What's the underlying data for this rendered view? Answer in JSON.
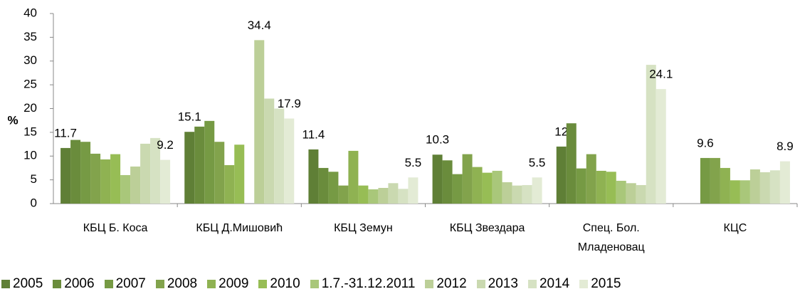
{
  "chart_data": {
    "type": "bar",
    "y_label": "%",
    "categories": [
      "КБЦ Б. Коса",
      "КБЦ Д.Мишовић",
      "КБЦ Земун",
      "КБЦ Звездара",
      "Спец. Бол. Младеновац",
      "КЦС"
    ],
    "ylim": [
      0,
      40
    ],
    "yticks": [
      0,
      5,
      10,
      15,
      20,
      25,
      30,
      35,
      40
    ],
    "grid": false,
    "series": [
      {
        "name": "2005",
        "color": "#5f7f36",
        "values": [
          11.7,
          15.1,
          11.4,
          10.3,
          12,
          null
        ],
        "show_value": [
          true,
          true,
          true,
          true,
          true,
          false
        ]
      },
      {
        "name": "2006",
        "color": "#6a8c3c",
        "values": [
          13.4,
          16.2,
          7.5,
          9.1,
          16.9,
          null
        ],
        "show_value": [
          false,
          false,
          false,
          false,
          false,
          false
        ]
      },
      {
        "name": "2007",
        "color": "#769a44",
        "values": [
          13,
          17.4,
          6.7,
          6.2,
          7.4,
          9.6
        ],
        "show_value": [
          false,
          false,
          false,
          false,
          false,
          true
        ]
      },
      {
        "name": "2008",
        "color": "#82a34c",
        "values": [
          10.5,
          13,
          3.8,
          10.4,
          10.4,
          9.6
        ],
        "show_value": [
          false,
          false,
          false,
          false,
          false,
          false
        ]
      },
      {
        "name": "2009",
        "color": "#8fb252",
        "values": [
          9.3,
          8.1,
          11.1,
          7.7,
          6.9,
          7.5
        ],
        "show_value": [
          false,
          false,
          false,
          false,
          false,
          false
        ]
      },
      {
        "name": "2010",
        "color": "#97bd55",
        "values": [
          10.4,
          12.4,
          3.8,
          6.5,
          6.7,
          4.9
        ],
        "show_value": [
          false,
          false,
          false,
          false,
          false,
          false
        ]
      },
      {
        "name": "1.7.-31.12.2011",
        "color": "#a9c77a",
        "values": [
          6,
          null,
          3,
          6.9,
          4.8,
          4.9
        ],
        "show_value": [
          false,
          false,
          false,
          false,
          false,
          false
        ]
      },
      {
        "name": "2012",
        "color": "#bccf98",
        "values": [
          7.8,
          34.4,
          3.3,
          4.5,
          4.3,
          7.2
        ],
        "show_value": [
          false,
          true,
          false,
          false,
          false,
          false
        ]
      },
      {
        "name": "2013",
        "color": "#cad9b0",
        "values": [
          12.6,
          22.1,
          4.3,
          3.8,
          3.9,
          6.6
        ],
        "show_value": [
          false,
          false,
          false,
          false,
          false,
          false
        ]
      },
      {
        "name": "2014",
        "color": "#d6e2c3",
        "values": [
          13.8,
          20,
          3.1,
          3.9,
          29.2,
          7
        ],
        "show_value": [
          false,
          false,
          false,
          false,
          false,
          false
        ]
      },
      {
        "name": "2015",
        "color": "#e3ebd5",
        "values": [
          9.2,
          17.9,
          5.5,
          5.5,
          24.1,
          8.9
        ],
        "show_value": [
          true,
          true,
          true,
          true,
          true,
          true
        ]
      }
    ]
  }
}
